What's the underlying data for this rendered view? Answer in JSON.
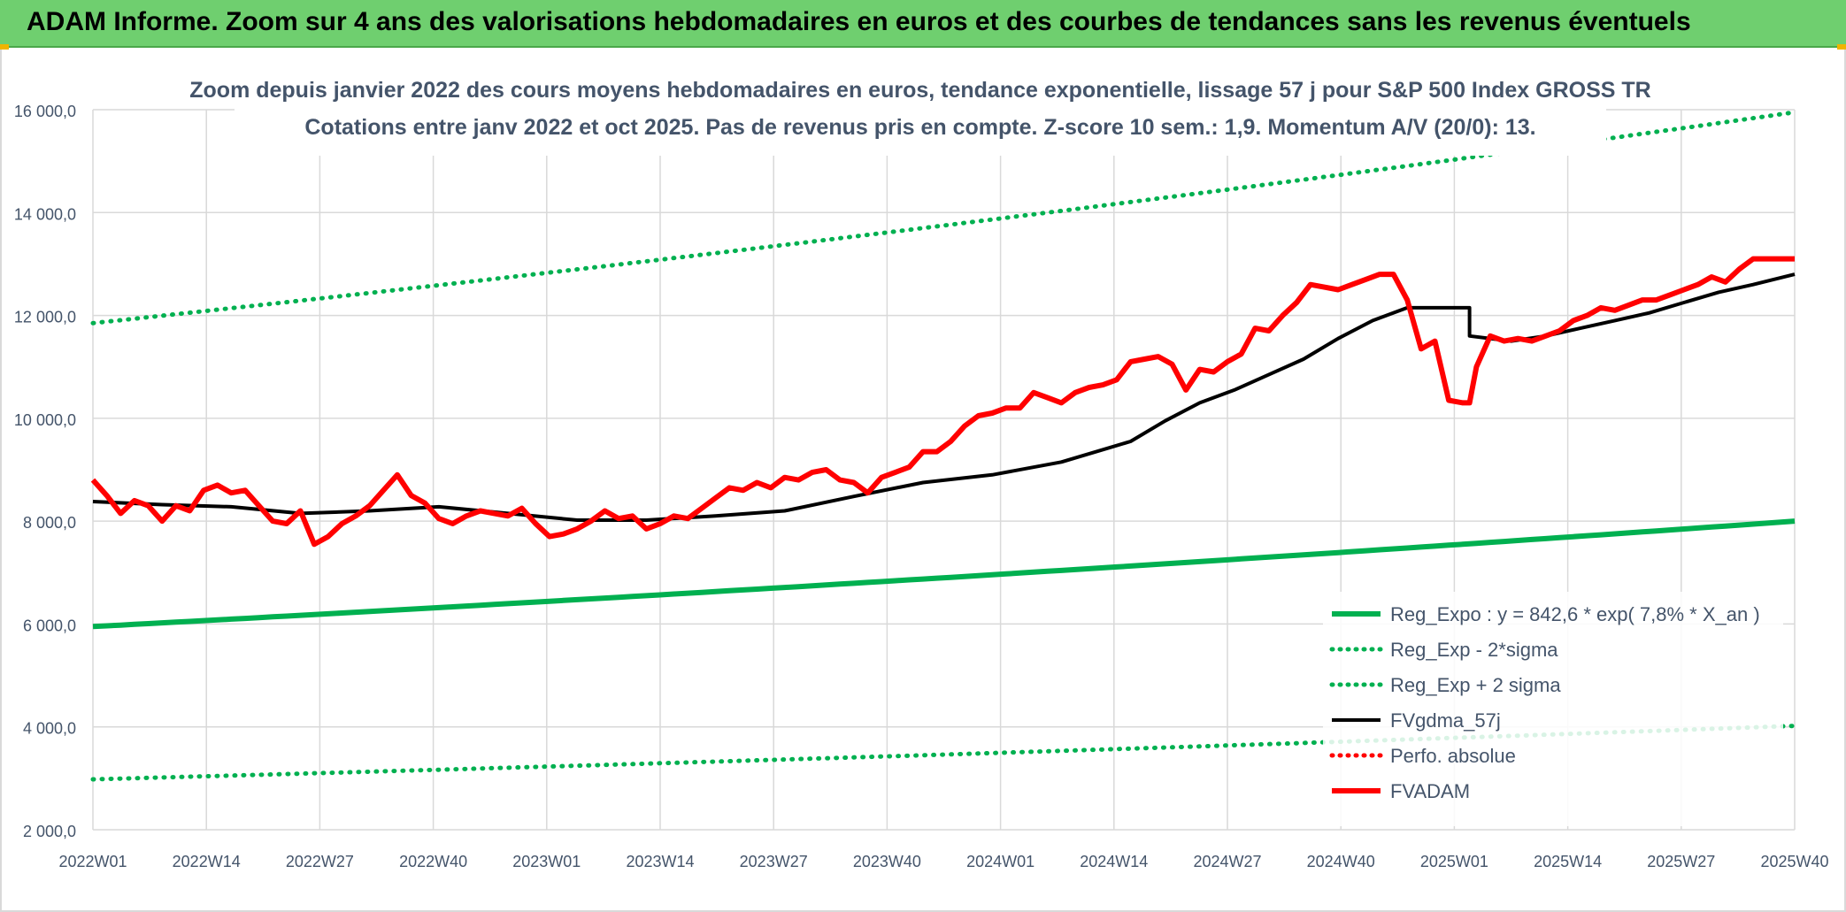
{
  "header": {
    "title": "ADAM Informe. Zoom sur 4 ans des valorisations hebdomadaires en euros et des courbes de tendances sans les revenus éventuels"
  },
  "chart_data": {
    "type": "line",
    "title": "Zoom depuis janvier 2022 des cours moyens hebdomadaires en euros, tendance exponentielle, lissage 57 j pour S&P 500 Index GROSS TR",
    "subtitle": "Cotations entre janv 2022 et oct 2025. Pas de revenus pris en compte. Z-score 10 sem.: 1,9. Momentum A/V (20/0): 13.",
    "x_ticks": [
      "2022W01",
      "2022W14",
      "2022W27",
      "2022W40",
      "2023W01",
      "2023W14",
      "2023W27",
      "2023W40",
      "2024W01",
      "2024W14",
      "2024W27",
      "2024W40",
      "2025W01",
      "2025W14",
      "2025W27",
      "2025W40"
    ],
    "y_ticks": [
      "2 000,0",
      "4 000,0",
      "6 000,0",
      "8 000,0",
      "10 000,0",
      "12 000,0",
      "14 000,0",
      "16 000,0"
    ],
    "ylim": [
      2000,
      16000
    ],
    "weeks_total": 199,
    "grid": true,
    "legend_position": "bottom-right",
    "colors": {
      "reg_expo": "#00b050",
      "minus_sigma": "#00b050",
      "plus_sigma": "#00b050",
      "fvgdma": "#000000",
      "perfo": "#ff0000",
      "fvadam": "#ff0000"
    },
    "legend": [
      {
        "key": "reg_expo",
        "label": "Reg_Expo : y = 842,6 * exp( 7,8% *  X_an )",
        "style": "solid"
      },
      {
        "key": "minus_sigma",
        "label": "Reg_Exp - 2*sigma",
        "style": "dotted"
      },
      {
        "key": "plus_sigma",
        "label": "Reg_Exp + 2 sigma",
        "style": "dotted"
      },
      {
        "key": "fvgdma",
        "label": "FVgdma_57j",
        "style": "solid"
      },
      {
        "key": "perfo",
        "label": "Perfo. absolue",
        "style": "dotted"
      },
      {
        "key": "fvadam",
        "label": "FVADAM",
        "style": "solid"
      }
    ],
    "series": [
      {
        "key": "reg_expo",
        "start": 5950,
        "end": 8000
      },
      {
        "key": "minus_sigma",
        "start": 2980,
        "end": 4020
      },
      {
        "key": "plus_sigma",
        "start": 11850,
        "end": 15950
      },
      {
        "key": "fvgdma",
        "x": [
          0,
          10,
          20,
          30,
          40,
          50,
          60,
          70,
          80,
          90,
          100,
          110,
          120,
          130,
          140,
          150,
          155,
          160,
          165,
          170,
          175,
          180,
          185,
          190,
          199
        ],
        "y": [
          8380,
          8320,
          8280,
          8150,
          8200,
          8280,
          8150,
          8020,
          8020,
          8100,
          8200,
          8480,
          8750,
          8900,
          9150,
          9550,
          9950,
          10300,
          10550,
          10850,
          11150,
          11550,
          11900,
          12150,
          12150
        ]
      },
      {
        "key": "fvadam",
        "x": [
          0,
          2,
          4,
          6,
          8,
          10,
          12,
          14,
          16,
          18,
          20,
          22,
          24,
          26,
          28,
          30,
          32,
          34,
          36,
          38,
          40,
          42,
          44,
          46,
          48,
          50,
          52,
          54,
          56,
          58,
          60,
          62,
          64,
          66,
          68,
          70,
          72,
          74,
          76,
          78,
          80,
          82,
          84,
          86,
          88,
          90,
          92,
          94,
          96,
          98,
          100,
          102,
          104,
          106,
          108,
          110,
          112,
          114,
          116,
          118,
          120,
          122,
          124,
          126,
          128,
          130,
          132,
          134,
          136,
          138,
          140,
          142,
          144,
          146,
          148,
          150,
          152,
          154,
          156,
          158,
          160,
          162,
          164,
          166,
          168,
          170,
          172,
          174,
          176,
          178,
          180,
          182,
          184,
          186,
          188,
          190,
          192,
          194,
          196,
          198
        ],
        "y": [
          8800,
          8500,
          8150,
          8400,
          8300,
          8000,
          8300,
          8200,
          8600,
          8700,
          8550,
          8600,
          8300,
          8000,
          7950,
          8200,
          7550,
          7700,
          7950,
          8100,
          8300,
          8600,
          8900,
          8500,
          8350,
          8050,
          7950,
          8100,
          8200,
          8150,
          8100,
          8250,
          7950,
          7700,
          7750,
          7850,
          8000,
          8200,
          8050,
          8100,
          7850,
          7950,
          8100,
          8050,
          8250,
          8450,
          8650,
          8600,
          8750,
          8650,
          8850,
          8800,
          8950,
          9000,
          8800,
          8750,
          8550,
          8850,
          8950,
          9050,
          9350,
          9350,
          9550,
          9850,
          10050,
          10100,
          10200,
          10200,
          10500,
          10400,
          10300,
          10500,
          10600,
          10650,
          10750,
          11100,
          11150,
          11200,
          11050,
          10550,
          10950,
          10900,
          11100,
          11250,
          11750,
          11700,
          12000,
          12250,
          12600,
          12550,
          12500,
          12600,
          12700,
          12800,
          12800,
          12300,
          11350,
          11500,
          10350,
          10300
        ]
      }
    ],
    "fvadam_tail": {
      "x": [
        199,
        200,
        202,
        204,
        206,
        208,
        210,
        212,
        214,
        216,
        218,
        220,
        222,
        224,
        226,
        228,
        230,
        232,
        234,
        236,
        238,
        240,
        242,
        244,
        246
      ],
      "y": [
        10300,
        11000,
        11600,
        11500,
        11550,
        11500,
        11600,
        11700,
        11900,
        12000,
        12150,
        12100,
        12200,
        12300,
        12300,
        12400,
        12500,
        12600,
        12750,
        12650,
        12900,
        13100,
        13100,
        13100,
        13100
      ]
    },
    "fvgdma_tail": {
      "x": [
        199,
        205,
        210,
        215,
        220,
        225,
        230,
        235,
        240,
        246
      ],
      "y": [
        11600,
        11500,
        11600,
        11750,
        11900,
        12050,
        12250,
        12450,
        12600,
        12800
      ]
    }
  }
}
